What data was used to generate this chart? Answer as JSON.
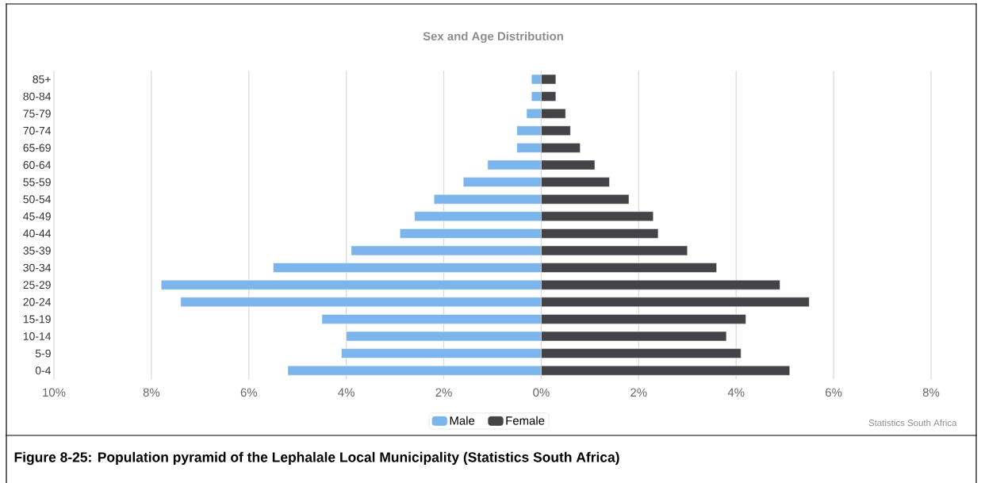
{
  "chart_data": {
    "type": "bar",
    "orientation": "horizontal",
    "title": "Sex and Age Distribution",
    "categories": [
      "85+",
      "80-84",
      "75-79",
      "70-74",
      "65-69",
      "60-64",
      "55-59",
      "50-54",
      "45-49",
      "40-44",
      "35-39",
      "30-34",
      "25-29",
      "20-24",
      "15-19",
      "10-14",
      "5-9",
      "0-4"
    ],
    "series": [
      {
        "name": "Male",
        "color": "#7cb5ec",
        "values": [
          -0.2,
          -0.2,
          -0.3,
          -0.5,
          -0.5,
          -1.1,
          -1.6,
          -2.2,
          -2.6,
          -2.9,
          -3.9,
          -5.5,
          -7.8,
          -7.4,
          -4.5,
          -4.0,
          -4.1,
          -5.2
        ]
      },
      {
        "name": "Female",
        "color": "#434348",
        "values": [
          0.3,
          0.3,
          0.5,
          0.6,
          0.8,
          1.1,
          1.4,
          1.8,
          2.3,
          2.4,
          3.0,
          3.6,
          4.9,
          5.5,
          4.2,
          3.8,
          4.1,
          5.1
        ]
      }
    ],
    "xlim": [
      -10,
      8
    ],
    "xticks": [
      {
        "value": -10,
        "label": "10%"
      },
      {
        "value": -8,
        "label": "8%"
      },
      {
        "value": -6,
        "label": "6%"
      },
      {
        "value": -4,
        "label": "4%"
      },
      {
        "value": -2,
        "label": "2%"
      },
      {
        "value": 0,
        "label": "0%"
      },
      {
        "value": 2,
        "label": "2%"
      },
      {
        "value": 4,
        "label": "4%"
      },
      {
        "value": 6,
        "label": "6%"
      },
      {
        "value": 8,
        "label": "8%"
      }
    ],
    "grid": "x",
    "legend": "bottom",
    "stacked": true,
    "annotations": [
      "Statistics South Africa",
      "Figure 8-25: Population pyramid of the Lephalale Local Municipality (Statistics South Africa)"
    ]
  }
}
